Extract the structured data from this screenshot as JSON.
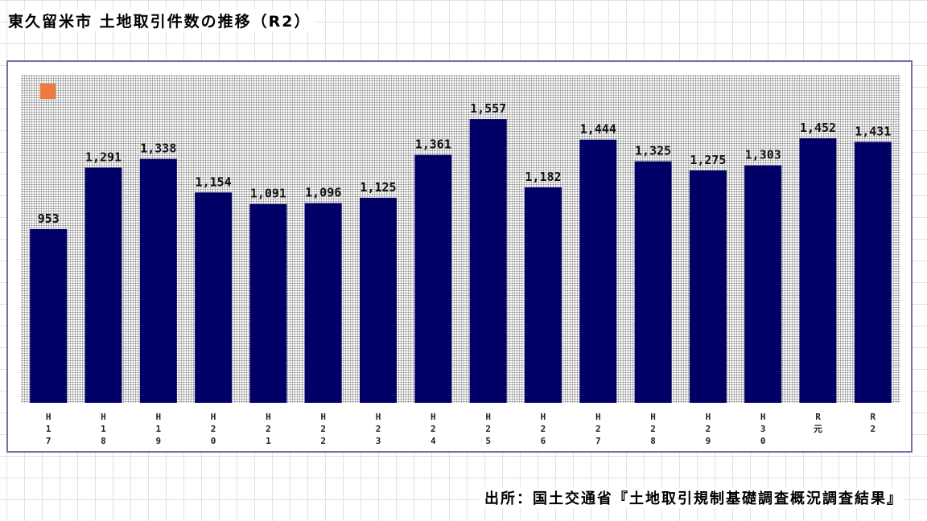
{
  "header": {
    "title": "東久留米市 土地取引件数の推移（R2）"
  },
  "badge": {
    "text": ""
  },
  "footer": {
    "source": "出所：国土交通省『土地取引規制基礎調査概況調査結果』"
  },
  "colors": {
    "bar": "#000066",
    "frame": "#6f6faa",
    "badge": "#ee7b3b"
  },
  "chart_data": {
    "type": "bar",
    "title": "東久留米市 土地取引件数の推移（R2）",
    "categories": [
      "H17",
      "H18",
      "H19",
      "H20",
      "H21",
      "H22",
      "H23",
      "H24",
      "H25",
      "H26",
      "H27",
      "H28",
      "H29",
      "H30",
      "R元",
      "R2"
    ],
    "x_tick_labels": [
      "H\n1\n7",
      "H\n1\n8",
      "H\n1\n9",
      "H\n2\n0",
      "H\n2\n1",
      "H\n2\n2",
      "H\n2\n3",
      "H\n2\n4",
      "H\n2\n5",
      "H\n2\n6",
      "H\n2\n7",
      "H\n2\n8",
      "H\n2\n9",
      "H\n3\n0",
      "R\n元",
      "R\n2"
    ],
    "values": [
      953,
      1291,
      1338,
      1154,
      1091,
      1096,
      1125,
      1361,
      1557,
      1182,
      1444,
      1325,
      1275,
      1303,
      1452,
      1431
    ],
    "data_labels": [
      "953",
      "1,291",
      "1,338",
      "1,154",
      "1,091",
      "1,096",
      "1,125",
      "1,361",
      "1,557",
      "1,182",
      "1,444",
      "1,325",
      "1,275",
      "1,303",
      "1,452",
      "1,431"
    ],
    "xlabel": "",
    "ylabel": "",
    "ylim": [
      0,
      1800
    ],
    "grid": false,
    "legend": "none"
  }
}
